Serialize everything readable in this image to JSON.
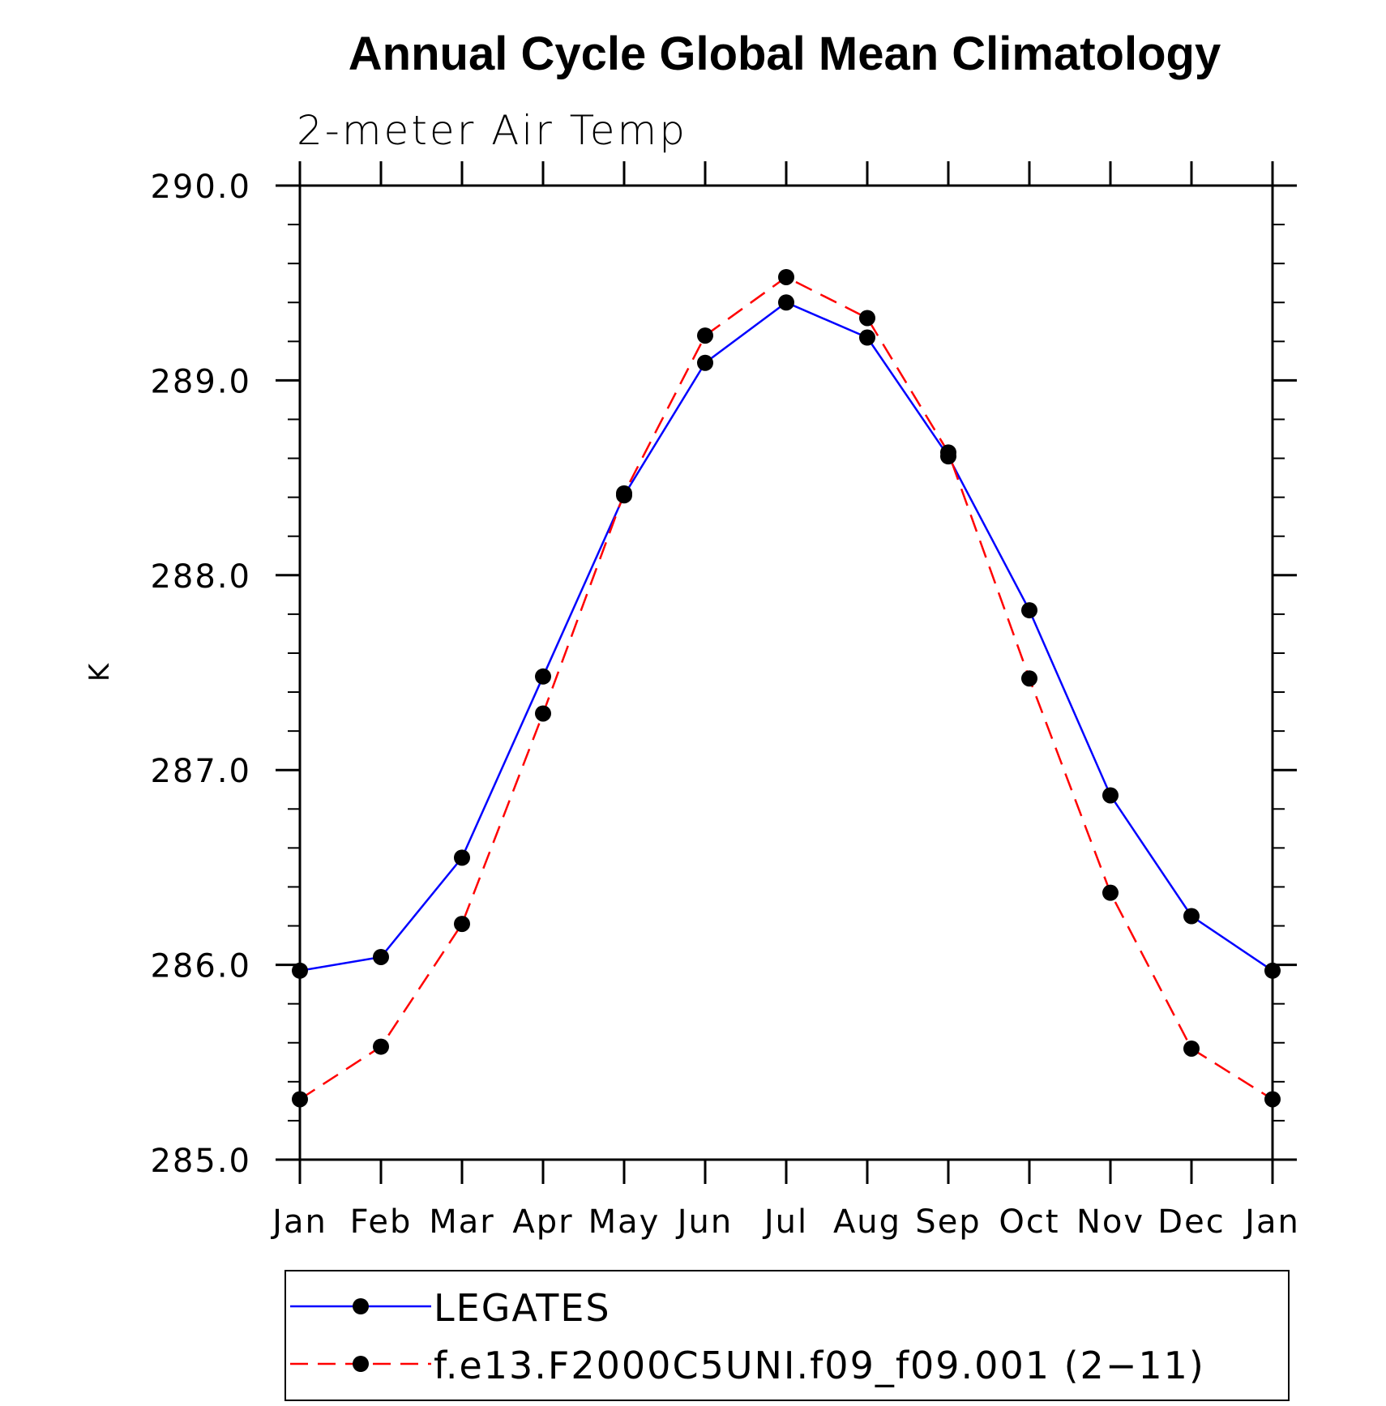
{
  "chart_data": {
    "type": "line",
    "title": "Annual Cycle Global Mean Climatology",
    "subtitle": "2-meter Air Temp",
    "xlabel": "",
    "ylabel": "K",
    "ylim": [
      285.0,
      290.0
    ],
    "yticks": [
      "285.0",
      "286.0",
      "287.0",
      "288.0",
      "289.0",
      "290.0"
    ],
    "categories": [
      "Jan",
      "Feb",
      "Mar",
      "Apr",
      "May",
      "Jun",
      "Jul",
      "Aug",
      "Sep",
      "Oct",
      "Nov",
      "Dec",
      "Jan"
    ],
    "legend_position": "bottom",
    "series": [
      {
        "name": "LEGATES",
        "color": "#0000ff",
        "dash": "solid",
        "marker": "filled-circle",
        "values": [
          285.97,
          286.04,
          286.55,
          287.48,
          288.41,
          289.09,
          289.4,
          289.22,
          288.61,
          287.82,
          286.87,
          286.25,
          285.97
        ]
      },
      {
        "name": "f.e13.F2000C5UNI.f09_f09.001 (2−11)",
        "color": "#ff0000",
        "dash": "dashed",
        "marker": "filled-circle",
        "values": [
          285.31,
          285.58,
          286.21,
          287.29,
          288.42,
          289.23,
          289.53,
          289.32,
          288.63,
          287.47,
          286.37,
          285.57,
          285.31
        ]
      }
    ]
  }
}
